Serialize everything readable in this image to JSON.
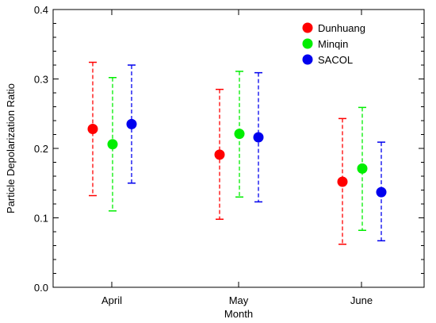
{
  "chart_data": {
    "type": "scatter",
    "title": "",
    "xlabel": "Month",
    "ylabel": "Particle Depolarization Ratio",
    "categories": [
      "April",
      "May",
      "June"
    ],
    "ylim": [
      0.0,
      0.4
    ],
    "yticks": [
      "0.0",
      "0.1",
      "0.2",
      "0.3",
      "0.4"
    ],
    "grid": false,
    "legend": "top-right",
    "series": [
      {
        "name": "Dunhuang",
        "color": "#ff0000",
        "values": [
          0.228,
          0.191,
          0.152
        ],
        "err_low": [
          0.132,
          0.098,
          0.062
        ],
        "err_high": [
          0.324,
          0.285,
          0.243
        ]
      },
      {
        "name": "Minqin",
        "color": "#00ee00",
        "values": [
          0.206,
          0.221,
          0.171
        ],
        "err_low": [
          0.11,
          0.13,
          0.082
        ],
        "err_high": [
          0.302,
          0.311,
          0.259
        ]
      },
      {
        "name": "SACOL",
        "color": "#0000ee",
        "values": [
          0.235,
          0.216,
          0.137
        ],
        "err_low": [
          0.15,
          0.123,
          0.067
        ],
        "err_high": [
          0.32,
          0.309,
          0.209
        ]
      }
    ]
  }
}
